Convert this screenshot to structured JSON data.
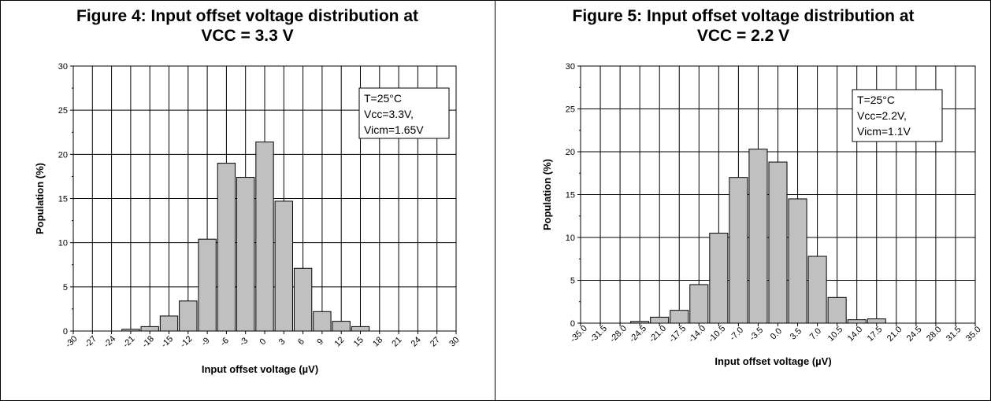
{
  "chart_data": [
    {
      "type": "bar",
      "title_line1": "Figure 4: Input offset voltage distribution at",
      "title_line2": "VCC = 3.3 V",
      "xlabel": "Input offset voltage (µV)",
      "ylabel": "Population (%)",
      "xlim": [
        -30,
        30
      ],
      "ylim": [
        0,
        30
      ],
      "x_ticks": [
        "-30",
        "-27",
        "-24",
        "-21",
        "-18",
        "-15",
        "-12",
        "-9",
        "-6",
        "-3",
        "0",
        "3",
        "6",
        "9",
        "12",
        "15",
        "18",
        "21",
        "24",
        "27",
        "30"
      ],
      "y_ticks": [
        "0",
        "5",
        "10",
        "15",
        "20",
        "25",
        "30"
      ],
      "grid": true,
      "categories": [
        -21,
        -18,
        -15,
        -12,
        -9,
        -6,
        -3,
        0,
        3,
        6,
        9,
        12,
        15
      ],
      "values": [
        0.2,
        0.5,
        1.7,
        3.4,
        10.4,
        19.0,
        17.4,
        21.4,
        14.7,
        7.1,
        2.2,
        1.1,
        0.5
      ],
      "annotation": [
        "T=25°C",
        "Vcc=3.3V,",
        "Vicm=1.65V"
      ],
      "annotation_position": "top-right"
    },
    {
      "type": "bar",
      "title_line1": "Figure 5: Input offset voltage distribution at",
      "title_line2": "VCC = 2.2 V",
      "xlabel": "Input offset voltage (µV)",
      "ylabel": "Population (%)",
      "xlim": [
        -35,
        35
      ],
      "ylim": [
        0,
        30
      ],
      "x_ticks": [
        "-35.0",
        "-31.5",
        "-28.0",
        "-24.5",
        "-21.0",
        "-17.5",
        "-14.0",
        "-10.5",
        "-7.0",
        "-3.5",
        "0.0",
        "3.5",
        "7.0",
        "10.5",
        "14.0",
        "17.5",
        "21.0",
        "24.5",
        "28.0",
        "31.5",
        "35.0"
      ],
      "y_ticks": [
        "0",
        "5",
        "10",
        "15",
        "20",
        "25",
        "30"
      ],
      "grid": true,
      "categories": [
        -24.5,
        -21.0,
        -17.5,
        -14.0,
        -10.5,
        -7.0,
        -3.5,
        0.0,
        3.5,
        7.0,
        10.5,
        14.0,
        17.5
      ],
      "values": [
        0.2,
        0.7,
        1.5,
        4.5,
        10.5,
        17.0,
        20.3,
        18.8,
        14.5,
        7.8,
        3.0,
        0.4,
        0.5
      ],
      "annotation": [
        "T=25°C",
        "Vcc=2.2V,",
        "Vicm=1.1V"
      ],
      "annotation_position": "top-right"
    }
  ]
}
